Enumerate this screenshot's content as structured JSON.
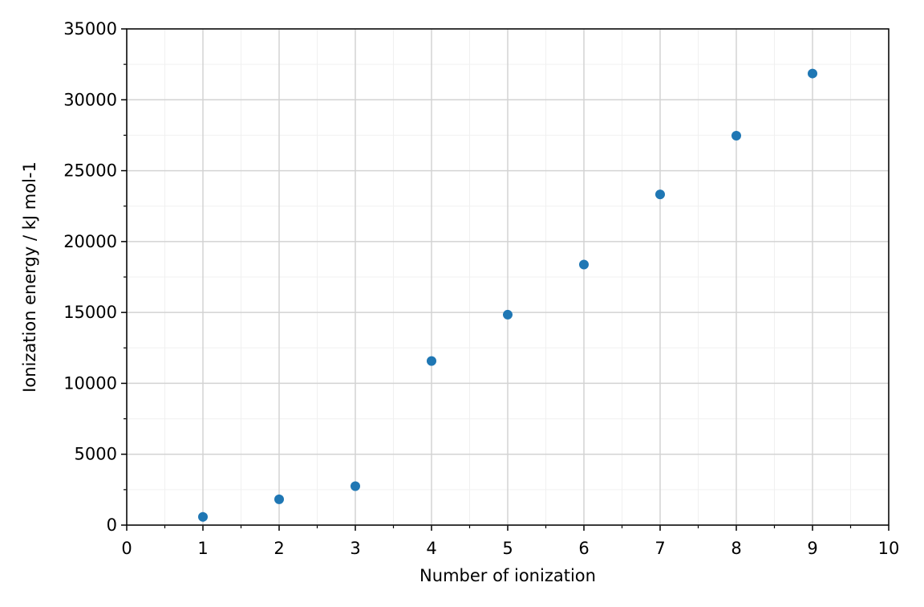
{
  "chart_data": {
    "type": "scatter",
    "xlabel": "Number of ionization",
    "ylabel": "Ionization energy / kJ mol-1",
    "series": [
      {
        "color": "#1f77b4",
        "x": [
          1,
          2,
          3,
          4,
          5,
          6,
          7,
          8,
          9
        ],
        "values": [
          578,
          1817,
          2745,
          11577,
          14842,
          18379,
          23326,
          27465,
          31853
        ]
      }
    ],
    "xlim": [
      0,
      10
    ],
    "xticks": [
      0,
      1,
      2,
      3,
      4,
      5,
      6,
      7,
      8,
      9,
      10
    ],
    "xminorticks": [
      0.5,
      1.5,
      2.5,
      3.5,
      4.5,
      5.5,
      6.5,
      7.5,
      8.5,
      9.5
    ],
    "ylim": [
      0,
      35000
    ],
    "yticks": [
      0,
      5000,
      10000,
      15000,
      20000,
      25000,
      30000,
      35000
    ],
    "yminorticks": [
      2500,
      7500,
      12500,
      17500,
      22500,
      27500,
      32500
    ],
    "grid": true,
    "minor_grid": true
  }
}
